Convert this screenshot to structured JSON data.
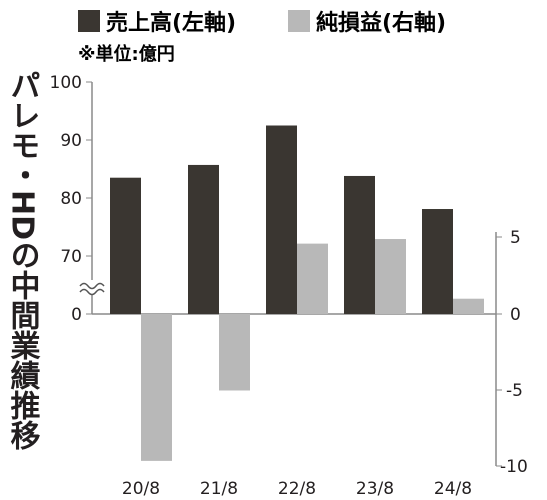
{
  "legend": {
    "left_label": "売上高(左軸)",
    "right_label": "純損益(右軸)"
  },
  "unit_note": "※単位:億円",
  "y_title": "パレモ・HDの中間業績推移",
  "chart_data": {
    "type": "bar",
    "categories": [
      "20/8",
      "21/8",
      "22/8",
      "23/8",
      "24/8"
    ],
    "series": [
      {
        "name": "売上高(左軸)",
        "axis": "left",
        "color": "#3a3631",
        "values": [
          83.5,
          85.7,
          92.5,
          83.8,
          78.1
        ]
      },
      {
        "name": "純損益(右軸)",
        "axis": "right",
        "color": "#b8b8b8",
        "values": [
          -9.6,
          -5.0,
          4.6,
          4.9,
          1.0
        ]
      }
    ],
    "left_axis": {
      "ticks": [
        "100",
        "90",
        "80",
        "70",
        "0"
      ],
      "ylim": [
        60,
        100
      ],
      "axis_break": true
    },
    "right_axis": {
      "ticks": [
        "5",
        "0",
        "-5",
        "-10"
      ],
      "ylim": [
        -10,
        5
      ]
    },
    "grid": false
  }
}
